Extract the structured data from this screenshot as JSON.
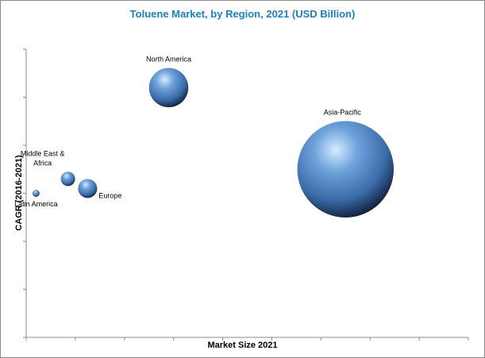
{
  "chart_data": {
    "type": "bubble",
    "title": "Toluene Market, by Region, 2021 (USD Billion)",
    "xlabel": "Market Size 2021",
    "ylabel": "CAGR (2016-2021)",
    "grid": false,
    "legend": "none",
    "series": [
      {
        "name": "Latin America",
        "x": 0.4,
        "y": 3.0,
        "size": 0.6
      },
      {
        "name": "Middle East & Africa",
        "x": 1.7,
        "y": 3.3,
        "size": 1.2
      },
      {
        "name": "Europe",
        "x": 2.5,
        "y": 3.1,
        "size": 1.6
      },
      {
        "name": "North America",
        "x": 5.8,
        "y": 5.2,
        "size": 3.3
      },
      {
        "name": "Asia-Pacific",
        "x": 13.0,
        "y": 3.5,
        "size": 8.1
      }
    ],
    "colors": {
      "bubble_light": "#cfe6ff",
      "bubble_mid": "#4f86c6",
      "bubble_dark": "#0f1e36",
      "title": "#1f7fc0"
    }
  }
}
